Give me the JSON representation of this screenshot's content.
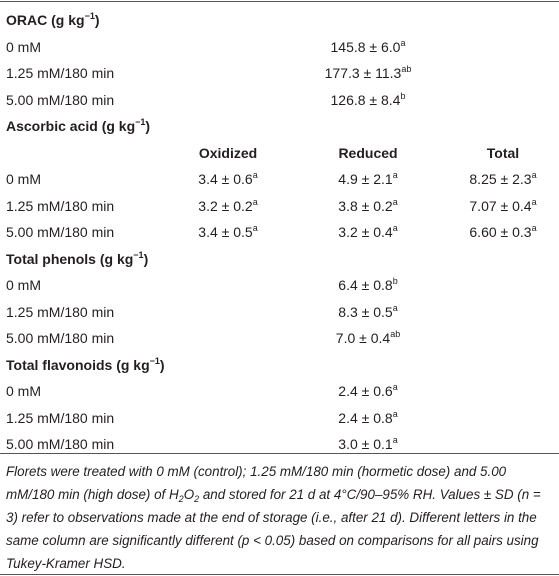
{
  "sections": [
    {
      "title": {
        "text": "ORAC (g kg",
        "sup": "−1",
        "close": ")"
      },
      "rows": [
        {
          "label": "0 mM",
          "cells": [
            {
              "text": "145.8 ± 6.0",
              "sup": "a"
            }
          ]
        },
        {
          "label": "1.25 mM/180 min",
          "cells": [
            {
              "text": "177.3 ± 11.3",
              "sup": "ab"
            }
          ]
        },
        {
          "label": "5.00 mM/180 min",
          "cells": [
            {
              "text": "126.8 ± 8.4",
              "sup": "b"
            }
          ]
        }
      ]
    },
    {
      "title": {
        "text": "Ascorbic acid (g kg",
        "sup": "−1",
        "close": ")"
      },
      "columns": [
        "Oxidized",
        "Reduced",
        "Total"
      ],
      "rows": [
        {
          "label": "0 mM",
          "cells": [
            {
              "text": "3.4 ± 0.6",
              "sup": "a"
            },
            {
              "text": "4.9 ± 2.1",
              "sup": "a"
            },
            {
              "text": "8.25 ± 2.3",
              "sup": "a"
            }
          ]
        },
        {
          "label": "1.25 mM/180 min",
          "cells": [
            {
              "text": "3.2 ± 0.2",
              "sup": "a"
            },
            {
              "text": "3.8 ± 0.2",
              "sup": "a"
            },
            {
              "text": "7.07 ± 0.4",
              "sup": "a"
            }
          ]
        },
        {
          "label": "5.00 mM/180 min",
          "cells": [
            {
              "text": "3.4 ± 0.5",
              "sup": "a"
            },
            {
              "text": "3.2 ± 0.4",
              "sup": "a"
            },
            {
              "text": "6.60 ± 0.3",
              "sup": "a"
            }
          ]
        }
      ]
    },
    {
      "title": {
        "text": "Total phenols (g kg",
        "sup": "−1",
        "close": ")"
      },
      "rows": [
        {
          "label": "0 mM",
          "cells": [
            {
              "text": "6.4 ± 0.8",
              "sup": "b"
            }
          ]
        },
        {
          "label": "1.25 mM/180 min",
          "cells": [
            {
              "text": "8.3 ± 0.5",
              "sup": "a"
            }
          ]
        },
        {
          "label": "5.00 mM/180 min",
          "cells": [
            {
              "text": "7.0 ± 0.4",
              "sup": "ab"
            }
          ]
        }
      ]
    },
    {
      "title": {
        "text": "Total flavonoids (g kg",
        "sup": "−1",
        "close": ")"
      },
      "rows": [
        {
          "label": "0 mM",
          "cells": [
            {
              "text": "2.4 ± 0.6",
              "sup": "a"
            }
          ]
        },
        {
          "label": "1.25 mM/180 min",
          "cells": [
            {
              "text": "2.4 ± 0.8",
              "sup": "a"
            }
          ]
        },
        {
          "label": "5.00 mM/180 min",
          "cells": [
            {
              "text": "3.0 ± 0.1",
              "sup": "a"
            }
          ]
        }
      ]
    }
  ],
  "footnote": [
    {
      "text": "Florets were treated with 0 mM (control); 1.25 mM/180 min (hormetic dose) and 5.00 mM/180 min (high dose) of H"
    },
    {
      "sub": "2"
    },
    {
      "text": "O"
    },
    {
      "sub": "2"
    },
    {
      "text": " and stored for 21 d at 4°C/90–95% RH. Values ± SD (n = 3) refer to observations made at the end of storage (i.e., after 21 d). Different letters in the same column are significantly different (p < 0.05) based on comparisons for all pairs using Tukey-Kramer HSD."
    }
  ]
}
